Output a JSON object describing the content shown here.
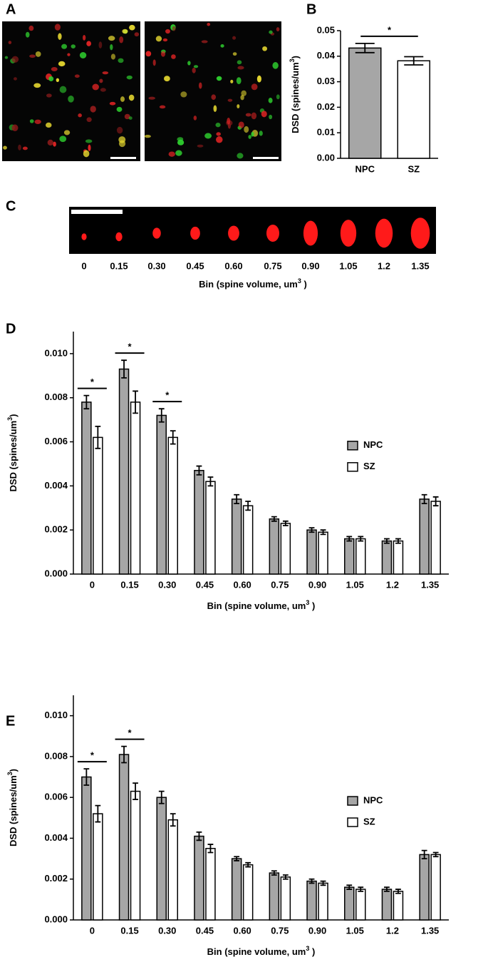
{
  "panel_labels": [
    "A",
    "B",
    "C",
    "D",
    "E"
  ],
  "image_strip": {
    "labels": [
      "0",
      "0.15",
      "0.30",
      "0.45",
      "0.60",
      "0.75",
      "0.90",
      "1.05",
      "1.2",
      "1.35"
    ],
    "xlabel": [
      "Bin (spine volume, um",
      "3",
      " )"
    ]
  },
  "chart_data": [
    {
      "type": "bar",
      "categories": [
        "NPC",
        "SZ"
      ],
      "values": [
        0.0432,
        0.0382
      ],
      "errors": [
        0.0018,
        0.0016
      ],
      "colors": [
        "#a6a6a6",
        "#ffffff"
      ],
      "ylabel": [
        "DSD (spines/um",
        "3",
        ")"
      ],
      "ylim": [
        0,
        0.05
      ],
      "yticks": [
        {
          "value": 0,
          "label": "0.00"
        },
        0.01,
        0.02,
        0.03,
        0.04,
        0.05
      ],
      "annotations": [
        "*"
      ]
    },
    {
      "type": "grouped_bar",
      "categories": [
        "0",
        "0.15",
        "0.30",
        "0.45",
        "0.60",
        "0.75",
        "0.90",
        "1.05",
        "1.2",
        "1.35"
      ],
      "series": [
        {
          "name": "NPC",
          "color": "#a6a6a6",
          "values": [
            0.0078,
            0.0093,
            0.0072,
            0.0047,
            0.0034,
            0.0025,
            0.002,
            0.0016,
            0.0015,
            0.0034
          ],
          "errors": [
            0.0003,
            0.0004,
            0.0003,
            0.0002,
            0.0002,
            0.0001,
            0.0001,
            0.0001,
            0.0001,
            0.0002
          ]
        },
        {
          "name": "SZ",
          "color": "#ffffff",
          "values": [
            0.0062,
            0.0078,
            0.0062,
            0.0042,
            0.0031,
            0.0023,
            0.0019,
            0.0016,
            0.0015,
            0.0033
          ],
          "errors": [
            0.0005,
            0.0005,
            0.0003,
            0.0002,
            0.0002,
            0.0001,
            0.0001,
            0.0001,
            0.0001,
            0.0002
          ]
        }
      ],
      "xlabel": [
        "Bin (spine volume, um",
        "3",
        " )"
      ],
      "ylabel": [
        "DSD (spines/um",
        "3",
        ")"
      ],
      "ylim": [
        0,
        0.011
      ],
      "yticks": [
        {
          "value": 0,
          "label": "0.000"
        },
        {
          "value": 0.002,
          "label": "0.002"
        },
        {
          "value": 0.004,
          "label": "0.004"
        },
        {
          "value": 0.006,
          "label": "0.006"
        },
        {
          "value": 0.008,
          "label": "0.008"
        },
        {
          "value": 0.01,
          "label": "0.010"
        }
      ],
      "legend": "right",
      "annotations": [
        "*",
        "*",
        "*"
      ]
    },
    {
      "type": "grouped_bar",
      "categories": [
        "0",
        "0.15",
        "0.30",
        "0.45",
        "0.60",
        "0.75",
        "0.90",
        "1.05",
        "1.2",
        "1.35"
      ],
      "series": [
        {
          "name": "NPC",
          "color": "#a6a6a6",
          "values": [
            0.007,
            0.0081,
            0.006,
            0.0041,
            0.003,
            0.0023,
            0.0019,
            0.0016,
            0.0015,
            0.0032
          ],
          "errors": [
            0.0004,
            0.0004,
            0.0003,
            0.0002,
            0.0001,
            0.0001,
            0.0001,
            0.0001,
            0.0001,
            0.0002
          ]
        },
        {
          "name": "SZ",
          "color": "#ffffff",
          "values": [
            0.0052,
            0.0063,
            0.0049,
            0.0035,
            0.0027,
            0.0021,
            0.0018,
            0.0015,
            0.0014,
            0.0032
          ],
          "errors": [
            0.0004,
            0.0004,
            0.0003,
            0.0002,
            0.0001,
            0.0001,
            0.0001,
            0.0001,
            0.0001,
            0.0001
          ]
        }
      ],
      "xlabel": [
        "Bin (spine volume, um",
        "3",
        " )"
      ],
      "ylabel": [
        "DSD (spines/um",
        "3",
        ")"
      ],
      "ylim": [
        0,
        0.011
      ],
      "yticks": [
        {
          "value": 0,
          "label": "0.000"
        },
        {
          "value": 0.002,
          "label": "0.002"
        },
        {
          "value": 0.004,
          "label": "0.004"
        },
        {
          "value": 0.006,
          "label": "0.006"
        },
        {
          "value": 0.008,
          "label": "0.008"
        },
        {
          "value": 0.01,
          "label": "0.010"
        }
      ],
      "legend": "right",
      "annotations": [
        "*",
        "*"
      ]
    }
  ]
}
